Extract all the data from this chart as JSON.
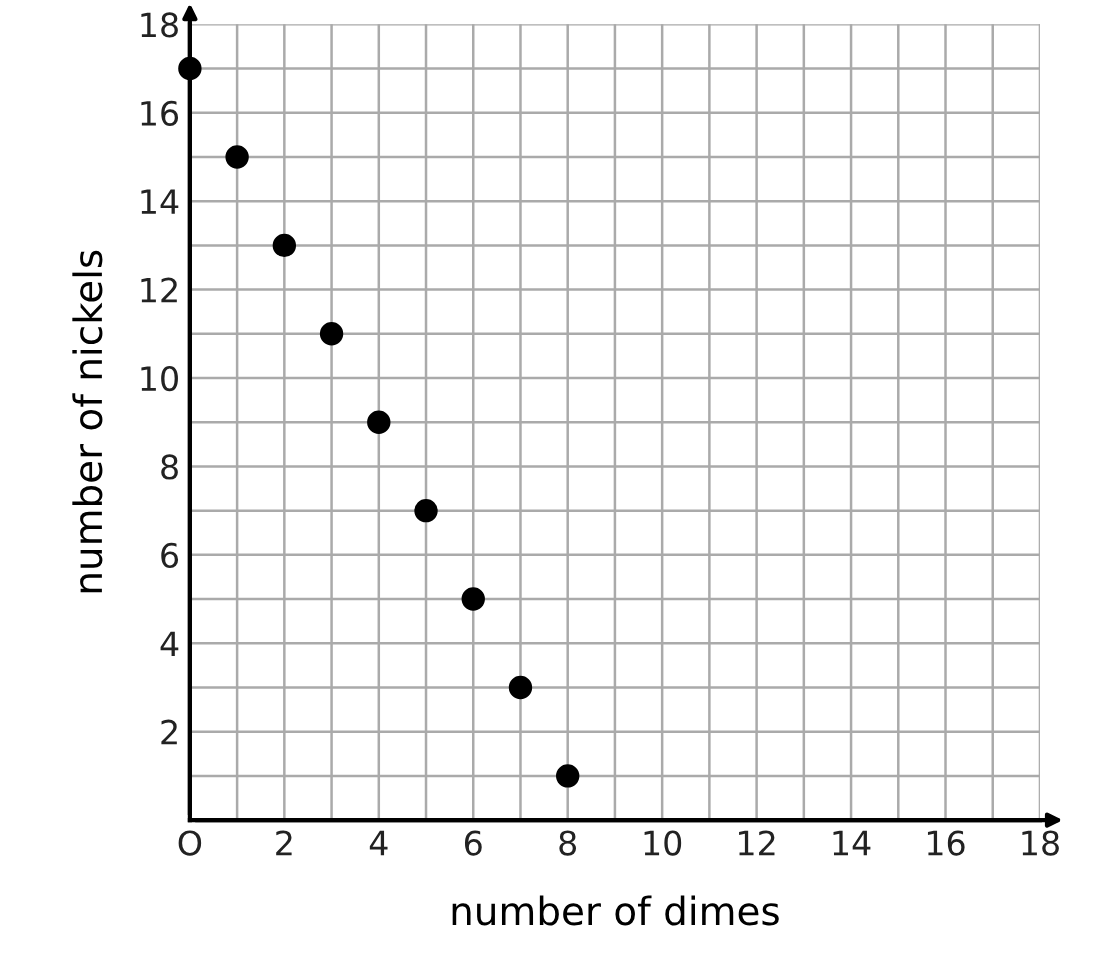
{
  "chart_data": {
    "type": "scatter",
    "xlabel": "number of dimes",
    "ylabel": "number of nickels",
    "x": [
      0,
      1,
      2,
      3,
      4,
      5,
      6,
      7,
      8
    ],
    "series": [
      {
        "color": "#000000",
        "values": [
          17,
          15,
          13,
          11,
          9,
          7,
          5,
          3,
          1
        ]
      }
    ],
    "xlim": [
      0,
      18
    ],
    "ylim": [
      0,
      18
    ],
    "xticks": [
      {
        "value": 0,
        "label": "O"
      },
      {
        "value": 1,
        "label": null
      },
      2,
      {
        "value": 3,
        "label": null
      },
      4,
      {
        "value": 5,
        "label": null
      },
      6,
      {
        "value": 7,
        "label": null
      },
      8,
      {
        "value": 9,
        "label": null
      },
      10,
      {
        "value": 11,
        "label": null
      },
      12,
      {
        "value": 13,
        "label": null
      },
      14,
      {
        "value": 15,
        "label": null
      },
      16,
      {
        "value": 17,
        "label": null
      },
      18
    ],
    "yticks": [
      {
        "value": 0,
        "label": null
      },
      {
        "value": 1,
        "label": null
      },
      2,
      {
        "value": 3,
        "label": null
      },
      4,
      {
        "value": 5,
        "label": null
      },
      6,
      {
        "value": 7,
        "label": null
      },
      8,
      {
        "value": 9,
        "label": null
      },
      10,
      {
        "value": 11,
        "label": null
      },
      12,
      {
        "value": 13,
        "label": null
      },
      14,
      {
        "value": 15,
        "label": null
      },
      16,
      {
        "value": 17,
        "label": null
      },
      18
    ],
    "grid": true,
    "marker": "circle"
  }
}
